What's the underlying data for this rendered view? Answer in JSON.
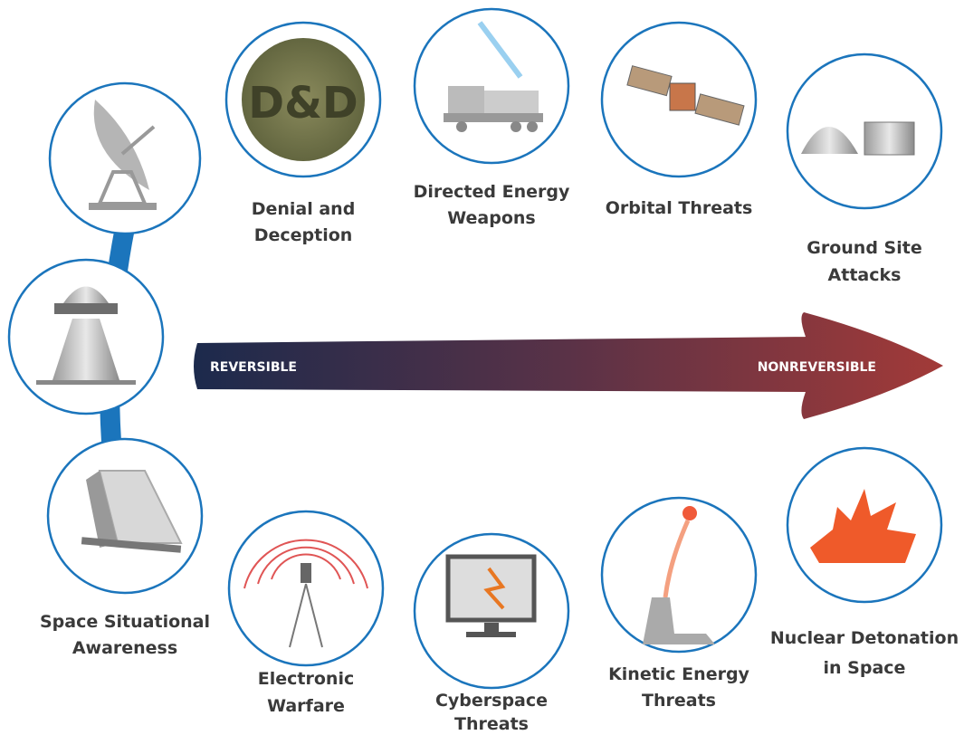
{
  "arrow": {
    "start_label": "REVERSIBLE",
    "end_label": "NONREVERSIBLE"
  },
  "nodes": [
    {
      "label": [
        "Space Situational",
        "Awareness"
      ]
    },
    {
      "label": [
        "Denial and",
        "Deception"
      ],
      "icon_text": "D&D"
    },
    {
      "label": [
        "Directed Energy",
        "Weapons"
      ]
    },
    {
      "label": [
        "Orbital Threats"
      ]
    },
    {
      "label": [
        "Ground Site",
        "Attacks"
      ]
    },
    {
      "label": [
        "Electronic",
        "Warfare"
      ]
    },
    {
      "label": [
        "Cyberspace",
        "Threats"
      ]
    },
    {
      "label": [
        "Kinetic Energy",
        "Threats"
      ]
    },
    {
      "label": [
        "Nuclear Detonation",
        "in Space"
      ]
    }
  ]
}
